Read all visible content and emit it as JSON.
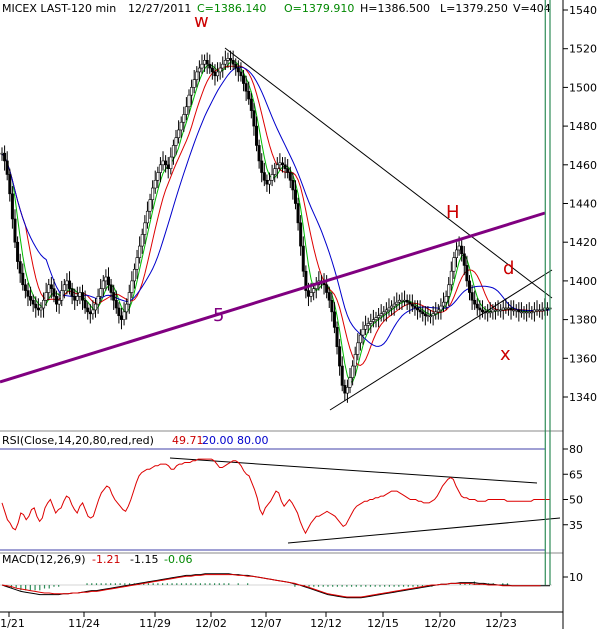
{
  "chart_data": [
    {
      "type": "candlestick",
      "header": {
        "symbol": "MICEX LAST-120 min",
        "date": "12/27/2011",
        "close": "C=1386.140",
        "open": "O=1379.910",
        "high": "H=1386.500",
        "low": "L=1379.250",
        "volume": "V=404"
      },
      "ylim": [
        1320,
        1548
      ],
      "yticks": [
        1340,
        1360,
        1380,
        1400,
        1420,
        1440,
        1460,
        1480,
        1500,
        1520,
        1540
      ],
      "xticks": [
        "11/21",
        "11/24",
        "11/29",
        "12/02",
        "12/07",
        "12/12",
        "12/15",
        "12/20",
        "12/23"
      ],
      "annotations": [
        {
          "text": "w",
          "color": "#cc0000"
        },
        {
          "text": "H",
          "color": "#cc0000"
        },
        {
          "text": "d",
          "color": "#cc0000"
        },
        {
          "text": "x",
          "color": "#cc0000"
        },
        {
          "text": "5",
          "color": "#800080"
        }
      ],
      "closes": [
        1466,
        1462,
        1455,
        1445,
        1432,
        1420,
        1410,
        1404,
        1398,
        1395,
        1392,
        1390,
        1388,
        1386,
        1385,
        1386,
        1390,
        1394,
        1398,
        1396,
        1392,
        1388,
        1390,
        1395,
        1398,
        1400,
        1396,
        1392,
        1390,
        1392,
        1394,
        1390,
        1386,
        1384,
        1383,
        1385,
        1388,
        1392,
        1396,
        1400,
        1402,
        1398,
        1394,
        1390,
        1386,
        1382,
        1380,
        1384,
        1388,
        1394,
        1400,
        1406,
        1412,
        1418,
        1424,
        1430,
        1436,
        1442,
        1448,
        1452,
        1456,
        1460,
        1462,
        1460,
        1458,
        1464,
        1470,
        1474,
        1478,
        1482,
        1486,
        1490,
        1496,
        1500,
        1504,
        1508,
        1510,
        1512,
        1514,
        1512,
        1510,
        1508,
        1506,
        1508,
        1510,
        1512,
        1514,
        1515,
        1514,
        1512,
        1510,
        1508,
        1506,
        1502,
        1498,
        1494,
        1488,
        1480,
        1470,
        1462,
        1456,
        1452,
        1450,
        1452,
        1455,
        1458,
        1460,
        1461,
        1460,
        1458,
        1456,
        1452,
        1447,
        1440,
        1430,
        1418,
        1405,
        1395,
        1392,
        1394,
        1396,
        1398,
        1400,
        1400,
        1398,
        1394,
        1390,
        1384,
        1376,
        1366,
        1356,
        1346,
        1342,
        1345,
        1350,
        1356,
        1362,
        1368,
        1372,
        1375,
        1377,
        1378,
        1379,
        1380,
        1381,
        1382,
        1383,
        1384,
        1385,
        1386,
        1387,
        1388,
        1389,
        1390,
        1390,
        1390,
        1389,
        1388,
        1387,
        1386,
        1385,
        1384,
        1383,
        1382,
        1382,
        1382,
        1383,
        1384,
        1385,
        1387,
        1389,
        1392,
        1398,
        1405,
        1412,
        1416,
        1418,
        1414,
        1408,
        1400,
        1394,
        1390,
        1388,
        1386,
        1385,
        1384,
        1384,
        1384,
        1384,
        1385,
        1385,
        1385,
        1385,
        1386,
        1386,
        1386,
        1385,
        1385,
        1385,
        1384,
        1384,
        1384,
        1384,
        1384,
        1384,
        1385,
        1385,
        1385,
        1385,
        1386,
        1386,
        1386
      ],
      "lows_highs_note": "",
      "overlays": [
        {
          "name": "fast",
          "color": "#00bb00"
        },
        {
          "name": "mid",
          "color": "#dd0000"
        },
        {
          "name": "slow",
          "color": "#0000cc"
        }
      ]
    },
    {
      "type": "line",
      "label": "RSI(Close,14,20,80,red,red)",
      "value": "49.71",
      "lower": "20.00",
      "upper": "80.00",
      "color": "#dd0000",
      "ylim": [
        18,
        90
      ],
      "yticks": [
        35,
        50,
        65,
        80
      ],
      "values": [
        48,
        43,
        38,
        36,
        33,
        32,
        36,
        42,
        41,
        38,
        40,
        44,
        45,
        40,
        37,
        39,
        45,
        48,
        50,
        46,
        42,
        44,
        45,
        49,
        52,
        51,
        47,
        44,
        42,
        46,
        48,
        44,
        40,
        39,
        40,
        45,
        50,
        54,
        56,
        58,
        57,
        53,
        50,
        48,
        46,
        44,
        43,
        46,
        50,
        55,
        60,
        64,
        66,
        67,
        68,
        68,
        69,
        70,
        70,
        71,
        71,
        71,
        70,
        68,
        68,
        70,
        71,
        71,
        72,
        72,
        72,
        73,
        73,
        74,
        74,
        74,
        74,
        74,
        74,
        73,
        71,
        69,
        69,
        70,
        71,
        72,
        73,
        73,
        72,
        70,
        67,
        65,
        64,
        60,
        56,
        51,
        44,
        41,
        45,
        47,
        49,
        52,
        55,
        54,
        49,
        46,
        48,
        50,
        48,
        45,
        42,
        37,
        33,
        30,
        33,
        36,
        38,
        40,
        40,
        41,
        42,
        43,
        42,
        41,
        40,
        38,
        36,
        34,
        35,
        38,
        41,
        44,
        46,
        47,
        48,
        49,
        49,
        50,
        50,
        51,
        51,
        52,
        52,
        53,
        54,
        55,
        55,
        55,
        54,
        53,
        52,
        51,
        50,
        50,
        50,
        49,
        49,
        48,
        48,
        48,
        49,
        50,
        52,
        55,
        58,
        60,
        62,
        63,
        62,
        58,
        55,
        52,
        51,
        51,
        50,
        50,
        50,
        49,
        49,
        49,
        49,
        50,
        50,
        50,
        50,
        50,
        50,
        50,
        49,
        49,
        49,
        49,
        49,
        49,
        49,
        49,
        49,
        49,
        50,
        50,
        50,
        50,
        50,
        50,
        50
      ]
    },
    {
      "type": "line",
      "label": "MACD(12,26,9)",
      "value1": "-1.21",
      "value2": "-1.15",
      "value3": "-0.06",
      "ylim": [
        -30,
        22
      ],
      "yticks": [
        10
      ],
      "series": [
        {
          "color": "#000000",
          "values": [
            0,
            -2,
            -4,
            -6,
            -8,
            -9,
            -10,
            -11,
            -12,
            -12,
            -12,
            -12,
            -12,
            -11,
            -11,
            -10,
            -10,
            -9,
            -8,
            -7,
            -7,
            -6,
            -5,
            -4,
            -3,
            -2,
            -1,
            0,
            1,
            2,
            3,
            4,
            5,
            6,
            7,
            8,
            9,
            10,
            11,
            12,
            12,
            13,
            13,
            14,
            14,
            14,
            14,
            14,
            14,
            13,
            13,
            12,
            12,
            11,
            10,
            9,
            8,
            7,
            6,
            5,
            4,
            3,
            1,
            0,
            -2,
            -4,
            -6,
            -8,
            -10,
            -12,
            -13,
            -14,
            -15,
            -16,
            -16,
            -16,
            -16,
            -15,
            -14,
            -13,
            -12,
            -11,
            -10,
            -9,
            -8,
            -7,
            -6,
            -5,
            -4,
            -3,
            -2,
            -1,
            0,
            1,
            1,
            2,
            2,
            3,
            3,
            3,
            3,
            2,
            2,
            1,
            1,
            0,
            0,
            0,
            -1,
            -1,
            -1,
            -1,
            -1,
            -1,
            -1,
            -1,
            -1
          ]
        },
        {
          "color": "#dd0000",
          "values": [
            0,
            -1,
            -2,
            -4,
            -5,
            -6,
            -7,
            -8,
            -9,
            -10,
            -10,
            -11,
            -11,
            -11,
            -11,
            -10,
            -10,
            -9,
            -9,
            -8,
            -8,
            -7,
            -6,
            -5,
            -4,
            -3,
            -2,
            -1,
            0,
            1,
            2,
            3,
            4,
            5,
            6,
            7,
            8,
            9,
            10,
            11,
            11,
            12,
            12,
            13,
            13,
            13,
            13,
            13,
            13,
            13,
            12,
            12,
            11,
            11,
            10,
            9,
            8,
            7,
            6,
            5,
            4,
            3,
            2,
            0,
            -1,
            -3,
            -5,
            -7,
            -9,
            -11,
            -12,
            -13,
            -14,
            -15,
            -15,
            -15,
            -15,
            -14,
            -13,
            -12,
            -11,
            -10,
            -9,
            -8,
            -7,
            -6,
            -5,
            -4,
            -3,
            -2,
            -1,
            0,
            0,
            1,
            1,
            2,
            2,
            2,
            2,
            2,
            1,
            1,
            1,
            0,
            0,
            0,
            -1,
            -1,
            -1,
            -1,
            -1,
            -1,
            -1,
            -1,
            -1
          ]
        }
      ]
    }
  ]
}
